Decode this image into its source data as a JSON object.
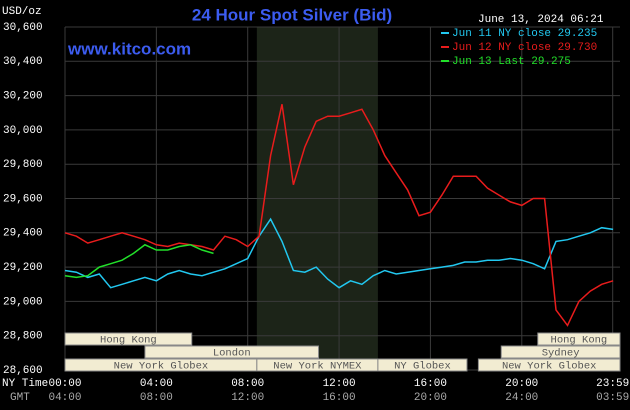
{
  "chart_data": {
    "type": "line",
    "title": "24 Hour Spot Silver (Bid)",
    "y_unit": "USD/oz",
    "timestamp": "June 13, 2024 06:21",
    "watermark": "www.kitco.com",
    "x_axis_label": "NY Time",
    "x2_axis_label": "GMT",
    "x": [
      0,
      0.5,
      1,
      1.5,
      2,
      2.5,
      3,
      3.5,
      4,
      4.5,
      5,
      5.5,
      6,
      6.5,
      7,
      7.5,
      8,
      8.5,
      9,
      9.5,
      10,
      10.5,
      11,
      11.5,
      12,
      12.5,
      13,
      13.5,
      14,
      14.5,
      15,
      15.5,
      16,
      16.5,
      17,
      17.5,
      18,
      18.5,
      19,
      19.5,
      20,
      20.5,
      21,
      21.5,
      22,
      22.5,
      23,
      23.5,
      24
    ],
    "xlim": [
      0,
      24.3
    ],
    "xticks": [
      {
        "value": 0,
        "label": "00:00"
      },
      {
        "value": 4,
        "label": "04:00"
      },
      {
        "value": 8,
        "label": "08:00"
      },
      {
        "value": 12,
        "label": "12:00"
      },
      {
        "value": 16,
        "label": "16:00"
      },
      {
        "value": 20,
        "label": "20:00"
      },
      {
        "value": 23.98,
        "label": "23:59"
      }
    ],
    "x2_tick_labels": [
      "04:00",
      "08:00",
      "12:00",
      "16:00",
      "20:00",
      "24:00",
      "03:59"
    ],
    "ylim": [
      28.6,
      30.6
    ],
    "yticks": [
      {
        "value": 28.6,
        "label": "28,600"
      },
      {
        "value": 28.8,
        "label": "28,800"
      },
      {
        "value": 29.0,
        "label": "29,000"
      },
      {
        "value": 29.2,
        "label": "29,200"
      },
      {
        "value": 29.4,
        "label": "29,400"
      },
      {
        "value": 29.6,
        "label": "29,600"
      },
      {
        "value": 29.8,
        "label": "29,800"
      },
      {
        "value": 30.0,
        "label": "30,000"
      },
      {
        "value": 30.2,
        "label": "30,200"
      },
      {
        "value": 30.4,
        "label": "30,400"
      },
      {
        "value": 30.6,
        "label": "30,600"
      }
    ],
    "grid": true,
    "highlight_range": [
      8.4,
      13.7
    ],
    "series": [
      {
        "name": "Jun 11 NY close 29.235",
        "color": "#22c8f0",
        "values": [
          29.18,
          29.17,
          29.14,
          29.16,
          29.08,
          29.1,
          29.12,
          29.14,
          29.12,
          29.16,
          29.18,
          29.16,
          29.15,
          29.17,
          29.19,
          29.22,
          29.25,
          29.38,
          29.48,
          29.35,
          29.18,
          29.17,
          29.2,
          29.13,
          29.08,
          29.12,
          29.1,
          29.15,
          29.18,
          29.16,
          29.17,
          29.18,
          29.19,
          29.2,
          29.21,
          29.23,
          29.23,
          29.24,
          29.24,
          29.25,
          29.24,
          29.22,
          29.19,
          29.35,
          29.36,
          29.38,
          29.4,
          29.43,
          29.42
        ]
      },
      {
        "name": "Jun 12 NY close 29.730",
        "color": "#e81c1c",
        "values": [
          29.4,
          29.38,
          29.34,
          29.36,
          29.38,
          29.4,
          29.38,
          29.36,
          29.33,
          29.32,
          29.34,
          29.33,
          29.32,
          29.3,
          29.38,
          29.36,
          29.32,
          29.38,
          29.85,
          30.15,
          29.68,
          29.9,
          30.05,
          30.08,
          30.08,
          30.1,
          30.12,
          30.0,
          29.85,
          29.75,
          29.65,
          29.5,
          29.52,
          29.62,
          29.73,
          29.73,
          29.73,
          29.66,
          29.62,
          29.58,
          29.56,
          29.6,
          29.6,
          28.95,
          28.86,
          29.0,
          29.06,
          29.1,
          29.12
        ]
      },
      {
        "name": "Jun 13 Last 29.275",
        "color": "#22e02a",
        "values": [
          29.15,
          29.14,
          29.15,
          29.2,
          29.22,
          29.24,
          29.28,
          29.33,
          29.3,
          29.3,
          29.32,
          29.33,
          29.3,
          29.28,
          null,
          null,
          null,
          null,
          null,
          null,
          null,
          null,
          null,
          null,
          null,
          null,
          null,
          null,
          null,
          null,
          null,
          null,
          null,
          null,
          null,
          null,
          null,
          null,
          null,
          null,
          null,
          null,
          null,
          null,
          null,
          null,
          null,
          null,
          null
        ]
      }
    ],
    "sessions": [
      {
        "label": "Hong Kong",
        "start": 0,
        "end": 5.55,
        "row": 0
      },
      {
        "label": "Hong Kong",
        "start": 20.7,
        "end": 24.3,
        "row": 0
      },
      {
        "label": "London",
        "start": 3.5,
        "end": 11.1,
        "row": 1
      },
      {
        "label": "Sydney",
        "start": 19.1,
        "end": 24.3,
        "row": 1
      },
      {
        "label": "New York Globex",
        "start": 0,
        "end": 8.4,
        "row": 2
      },
      {
        "label": "New York NYMEX",
        "start": 8.4,
        "end": 13.7,
        "row": 2
      },
      {
        "label": "NY Globex",
        "start": 13.7,
        "end": 17.6,
        "row": 2
      },
      {
        "label": "New York Globex",
        "start": 18.1,
        "end": 24.3,
        "row": 2
      }
    ]
  }
}
